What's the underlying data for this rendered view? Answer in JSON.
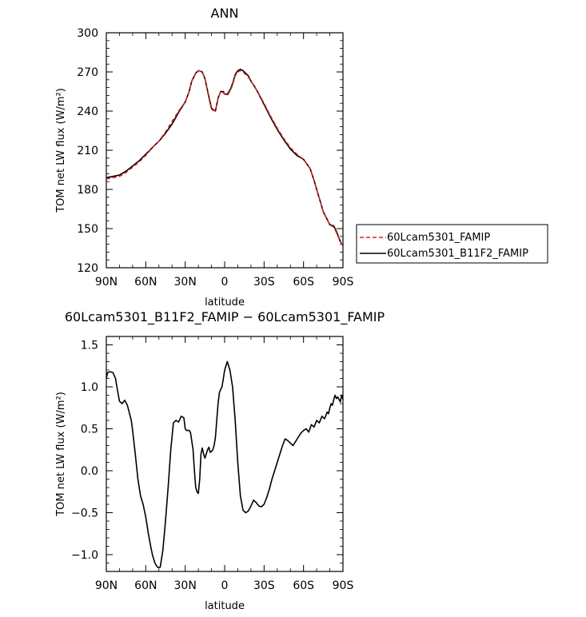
{
  "chart_data": [
    {
      "type": "line",
      "title": "ANN",
      "xlabel": "latitude",
      "ylabel": "TOM net LW flux (W/m²)",
      "xlim": [
        90,
        -90
      ],
      "ylim": [
        120,
        300
      ],
      "xticks": [
        90,
        60,
        30,
        0,
        -30,
        -60,
        -90
      ],
      "xtick_labels": [
        "90N",
        "60N",
        "30N",
        "0",
        "30S",
        "60S",
        "90S"
      ],
      "yticks": [
        120,
        150,
        180,
        210,
        240,
        270,
        300
      ],
      "ytick_labels": [
        "120",
        "150",
        "180",
        "210",
        "240",
        "270",
        "300"
      ],
      "legend_position": "outside-right",
      "series": [
        {
          "name": "60Lcam5301_FAMIP",
          "color": "#e02020",
          "dash": "dashed",
          "x": [
            90,
            85,
            80,
            75,
            70,
            65,
            60,
            55,
            50,
            45,
            40,
            35,
            30,
            27,
            25,
            22,
            20,
            17,
            15,
            12,
            10,
            7,
            5,
            3,
            1,
            0,
            -2,
            -4,
            -6,
            -8,
            -10,
            -12,
            -14,
            -16,
            -18,
            -20,
            -22,
            -25,
            -30,
            -35,
            -40,
            -45,
            -50,
            -55,
            -60,
            -65,
            -68,
            -70,
            -73,
            -75,
            -78,
            -80,
            -83,
            -85,
            -88,
            -90
          ],
          "y": [
            188,
            189,
            190,
            193,
            197,
            201,
            206,
            212,
            217,
            224,
            232,
            240,
            247,
            255,
            263,
            269,
            271,
            270,
            265,
            250,
            241,
            240,
            250,
            255,
            254,
            253,
            252,
            255,
            260,
            267,
            270,
            271,
            270,
            268,
            266,
            263,
            260,
            255,
            246,
            236,
            227,
            219,
            212,
            207,
            203,
            196,
            187,
            180,
            170,
            163,
            157,
            153,
            151,
            147,
            140,
            137
          ]
        },
        {
          "name": "60Lcam5301_B11F2_FAMIP",
          "color": "#000000",
          "dash": "solid",
          "x": [
            90,
            85,
            80,
            75,
            70,
            65,
            60,
            55,
            50,
            45,
            40,
            35,
            30,
            27,
            25,
            22,
            20,
            17,
            15,
            12,
            10,
            7,
            5,
            3,
            1,
            0,
            -2,
            -4,
            -6,
            -8,
            -10,
            -12,
            -14,
            -16,
            -18,
            -20,
            -22,
            -25,
            -30,
            -35,
            -40,
            -45,
            -50,
            -55,
            -60,
            -65,
            -68,
            -70,
            -73,
            -75,
            -78,
            -80,
            -83,
            -85,
            -88,
            -90
          ],
          "y": [
            189,
            190,
            191,
            194,
            198,
            202,
            207,
            212,
            217,
            223,
            230,
            239,
            247,
            255,
            263,
            269,
            271,
            270,
            265,
            251,
            242,
            240,
            250,
            255,
            255,
            253,
            253,
            256,
            261,
            268,
            271,
            272,
            271,
            269,
            267,
            263,
            260,
            255,
            245,
            235,
            226,
            218,
            211,
            206,
            203,
            196,
            187,
            180,
            170,
            163,
            157,
            153,
            152,
            148,
            140,
            137
          ]
        }
      ]
    },
    {
      "type": "line",
      "title": "60Lcam5301_B11F2_FAMIP − 60Lcam5301_FAMIP",
      "xlabel": "latitude",
      "ylabel": "TOM net LW flux (W/m²)",
      "xlim": [
        90,
        -90
      ],
      "ylim": [
        -1.2,
        1.6
      ],
      "xticks": [
        90,
        60,
        30,
        0,
        -30,
        -60,
        -90
      ],
      "xtick_labels": [
        "90N",
        "60N",
        "30N",
        "0",
        "30S",
        "60S",
        "90S"
      ],
      "yticks": [
        -1.0,
        -0.5,
        0.0,
        0.5,
        1.0,
        1.5
      ],
      "ytick_labels": [
        "−1.0",
        "−0.5",
        "0.0",
        "0.5",
        "1.0",
        "1.5"
      ],
      "series": [
        {
          "color": "#000000",
          "dash": "solid",
          "x": [
            90,
            89,
            87,
            85,
            83,
            82,
            80,
            78,
            76,
            74,
            73,
            71,
            70,
            68,
            66,
            64,
            62,
            60,
            58,
            56,
            55,
            53,
            51,
            49,
            47,
            45,
            43,
            41,
            39,
            37,
            35,
            33,
            31,
            30,
            29,
            27,
            26,
            24,
            23,
            22,
            21,
            20,
            19,
            18,
            17,
            16,
            15,
            14,
            13,
            12,
            11,
            10,
            9,
            8,
            7,
            6,
            5,
            4,
            3,
            2,
            1,
            0,
            -2,
            -4,
            -6,
            -8,
            -10,
            -12,
            -14,
            -16,
            -18,
            -20,
            -22,
            -24,
            -26,
            -28,
            -30,
            -32,
            -34,
            -36,
            -38,
            -40,
            -42,
            -44,
            -46,
            -48,
            -50,
            -52,
            -54,
            -56,
            -58,
            -60,
            -62,
            -64,
            -66,
            -68,
            -70,
            -72,
            -74,
            -76,
            -78,
            -79,
            -80,
            -81,
            -82,
            -83,
            -84,
            -85,
            -86,
            -87,
            -88,
            -89,
            -90
          ],
          "y": [
            1.1,
            1.17,
            1.18,
            1.17,
            1.1,
            1.0,
            0.83,
            0.8,
            0.84,
            0.78,
            0.72,
            0.6,
            0.48,
            0.2,
            -0.1,
            -0.3,
            -0.4,
            -0.55,
            -0.75,
            -0.92,
            -1.0,
            -1.1,
            -1.15,
            -1.15,
            -0.95,
            -0.6,
            -0.2,
            0.25,
            0.57,
            0.6,
            0.58,
            0.65,
            0.63,
            0.5,
            0.48,
            0.48,
            0.46,
            0.25,
            0.0,
            -0.2,
            -0.25,
            -0.27,
            -0.1,
            0.2,
            0.27,
            0.2,
            0.15,
            0.2,
            0.25,
            0.28,
            0.22,
            0.23,
            0.25,
            0.3,
            0.4,
            0.6,
            0.8,
            0.93,
            0.97,
            1.0,
            1.1,
            1.2,
            1.3,
            1.2,
            1.0,
            0.6,
            0.1,
            -0.3,
            -0.47,
            -0.5,
            -0.48,
            -0.42,
            -0.35,
            -0.38,
            -0.42,
            -0.43,
            -0.4,
            -0.32,
            -0.22,
            -0.1,
            0.0,
            0.1,
            0.2,
            0.3,
            0.38,
            0.36,
            0.33,
            0.3,
            0.35,
            0.4,
            0.45,
            0.48,
            0.5,
            0.46,
            0.55,
            0.52,
            0.6,
            0.57,
            0.65,
            0.62,
            0.7,
            0.68,
            0.75,
            0.8,
            0.78,
            0.85,
            0.9,
            0.86,
            0.88,
            0.85,
            0.82,
            0.9,
            0.85
          ]
        }
      ]
    }
  ]
}
